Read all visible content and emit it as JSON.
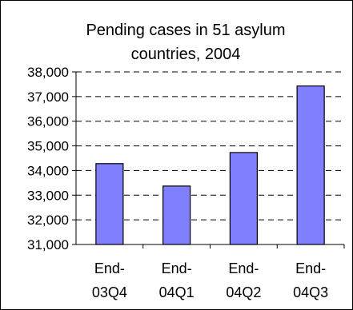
{
  "chart_data": {
    "type": "bar",
    "title_lines": [
      "Pending cases in 51 asylum",
      "countries, 2004"
    ],
    "categories": [
      [
        "End-",
        "03Q4"
      ],
      [
        "End-",
        "04Q1"
      ],
      [
        "End-",
        "04Q2"
      ],
      [
        "End-",
        "04Q3"
      ]
    ],
    "values": [
      34280,
      33370,
      34730,
      37430
    ],
    "yticks": [
      "31,000",
      "32,000",
      "33,000",
      "34,000",
      "35,000",
      "36,000",
      "37,000",
      "38,000"
    ],
    "ylim": [
      31000,
      38000
    ],
    "grid": "dashed-horizontal",
    "bar_color": "#8080ff"
  }
}
